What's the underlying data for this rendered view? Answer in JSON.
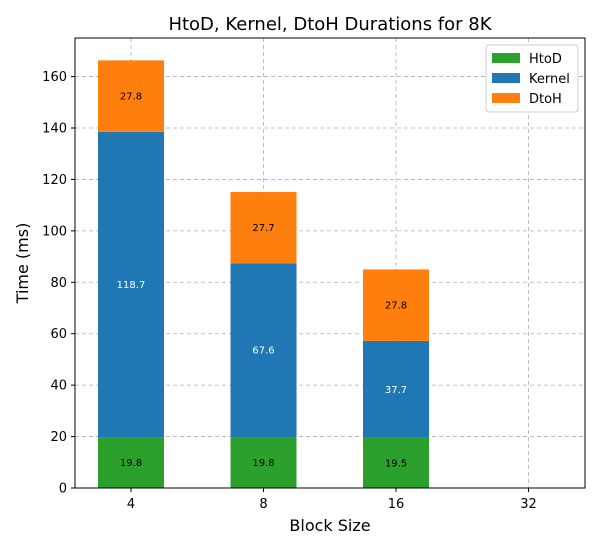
{
  "chart_data": {
    "type": "bar",
    "stacked": true,
    "title": "HtoD, Kernel, DtoH Durations for 8K",
    "xlabel": "Block Size",
    "ylabel": "Time (ms)",
    "categories": [
      "4",
      "8",
      "16",
      "32"
    ],
    "ylim": [
      0,
      175
    ],
    "yticks": [
      0,
      20,
      40,
      60,
      80,
      100,
      120,
      140,
      160
    ],
    "grid": true,
    "legend_position": "top-right",
    "series": [
      {
        "name": "HtoD",
        "color": "#2ca02c",
        "label_color": "#000000",
        "values": [
          19.8,
          19.8,
          19.5,
          null
        ]
      },
      {
        "name": "Kernel",
        "color": "#1f77b4",
        "label_color": "#ffffff",
        "values": [
          118.7,
          67.6,
          37.7,
          null
        ]
      },
      {
        "name": "DtoH",
        "color": "#ff7f0e",
        "label_color": "#000000",
        "values": [
          27.8,
          27.7,
          27.8,
          null
        ]
      }
    ]
  }
}
